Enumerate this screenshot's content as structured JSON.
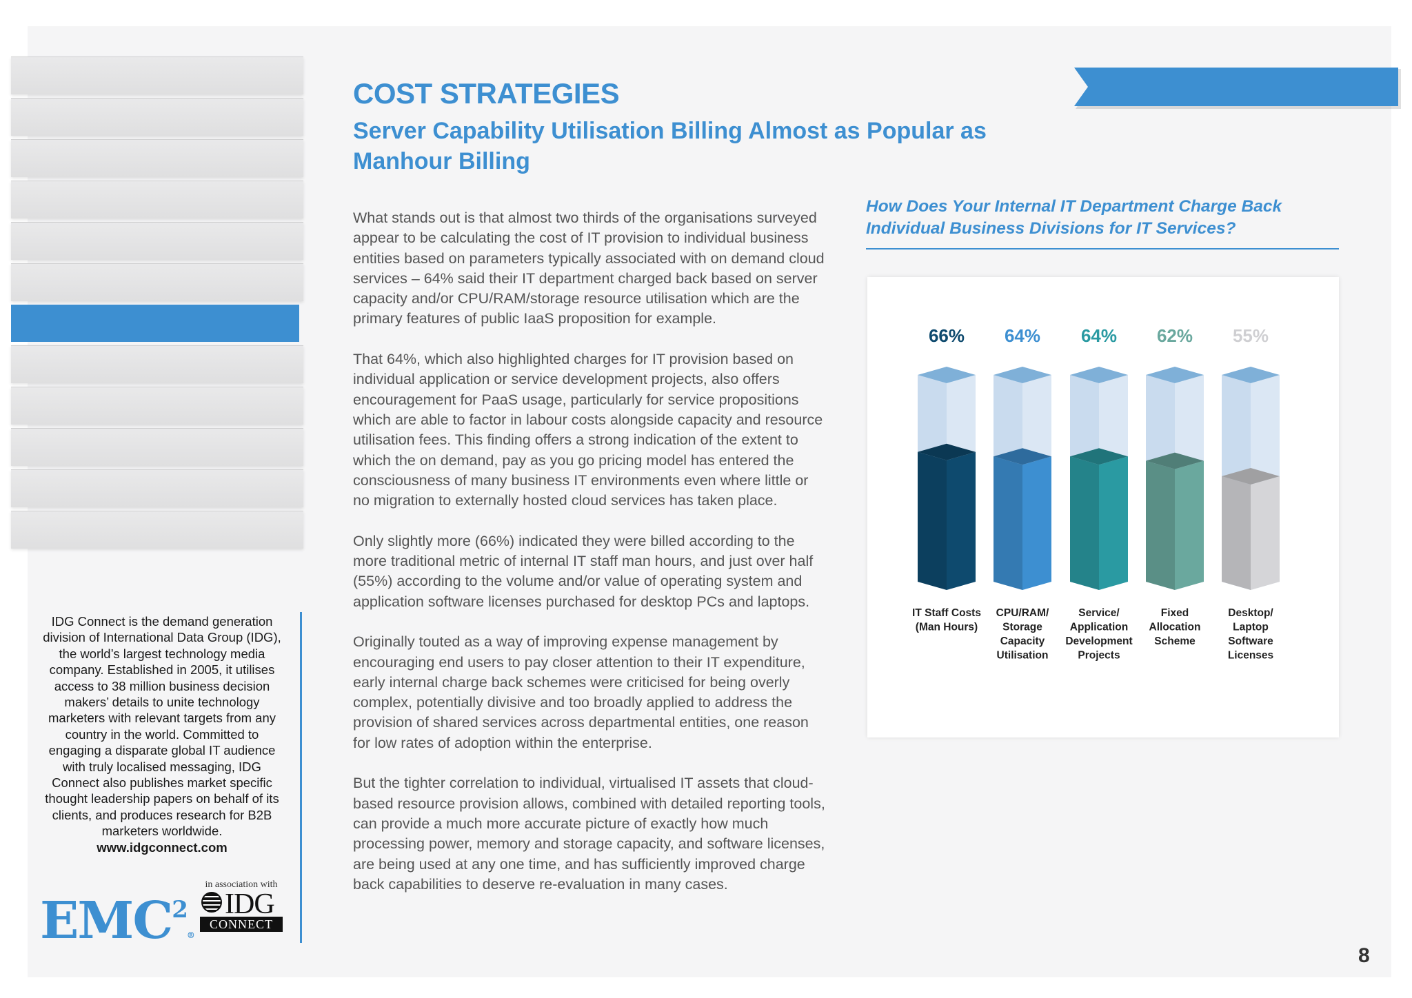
{
  "page": {
    "title": "COST STRATEGIES",
    "subtitle": "Server Capability Utilisation Billing Almost as Popular as Manhour Billing",
    "page_number": "8"
  },
  "body": {
    "paragraphs": [
      "What stands out is that almost two thirds of the organisations surveyed appear to be calculating the cost of IT provision to individual business entities based on parameters typically associated with on demand cloud services – 64% said their IT department charged back based on server capacity and/or CPU/RAM/storage resource utilisation which are the primary features of public IaaS proposition for example.",
      "That 64%, which also highlighted charges for IT provision based on individual application or service development projects, also offers encouragement for PaaS usage, particularly for service propositions which are able to factor in labour costs alongside capacity and resource utilisation fees. This finding offers a strong indication of the extent to which the on demand, pay as you go pricing model has entered the consciousness of many business IT environments even where little or no migration to externally hosted cloud services has taken place.",
      "Only slightly more (66%) indicated they were billed according to the more traditional metric of internal IT staff man hours, and just over half (55%) according to the volume and/or value of operating system and application software licenses purchased for desktop PCs and laptops.",
      "Originally touted as a way of improving expense management by encouraging end users to pay closer attention to their IT expenditure, early internal charge back schemes were criticised for being overly complex, potentially divisive and too broadly applied to address the provision of shared services across departmental entities, one reason for low rates of adoption within the enterprise.",
      "But the tighter correlation to individual, virtualised IT assets that cloud-based resource provision allows, combined with detailed reporting tools, can provide a much more accurate picture of exactly how much processing power, memory and storage capacity, and software licenses, are being used at any one time, and has sufficiently improved charge back capabilities to deserve re-evaluation in many cases."
    ]
  },
  "sidebar": {
    "tab_count": 12,
    "active_tab": 6,
    "about": "IDG Connect is the demand generation division of International Data Group (IDG), the world’s largest technology media company. Established in 2005, it utilises access to 38 million business decision makers’ details to unite technology marketers with relevant targets from any country in the world. Committed to engaging a disparate global IT audience with truly localised messaging, IDG Connect also publishes market specific thought leadership papers on behalf of its clients, and produces research for B2B marketers worldwide.",
    "url": "www.idgconnect.com",
    "logo_emc": "EMC",
    "logo_emc_sup": "2",
    "assoc_text": "in association with",
    "logo_idg": "IDG",
    "logo_connect": "CONNECT"
  },
  "chart_data": {
    "type": "bar",
    "title": "How Does Your Internal IT Department Charge Back Individual Business Divisions for IT Services?",
    "categories": [
      [
        "IT Staff Costs",
        "(Man Hours)"
      ],
      [
        "CPU/RAM/",
        "Storage",
        "Capacity",
        "Utilisation"
      ],
      [
        "Service/",
        "Application",
        "Development",
        "Projects"
      ],
      [
        "Fixed",
        "Allocation",
        "Scheme"
      ],
      [
        "Desktop/",
        "Laptop",
        "Software",
        "Licenses"
      ]
    ],
    "values": [
      66,
      64,
      64,
      62,
      55
    ],
    "value_labels": [
      "66%",
      "64%",
      "64%",
      "62%",
      "55%"
    ],
    "colors": [
      "#0e4a6e",
      "#3d8fd1",
      "#2a9aa2",
      "#6aa89e",
      "#d5d5d8"
    ],
    "label_colors": [
      "#0e4a6e",
      "#3d8fd1",
      "#2a9aa2",
      "#6aa89e",
      "#cfcfd2"
    ],
    "ylim": [
      0,
      100
    ]
  },
  "colors": {
    "accent": "#3d8fd1",
    "text": "#555555"
  }
}
